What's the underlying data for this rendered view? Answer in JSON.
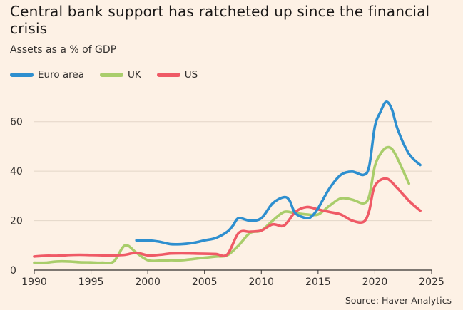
{
  "header": {
    "title": "Central bank support has ratcheted up since the financial crisis",
    "subtitle": "Assets as a % of GDP"
  },
  "footer": {
    "source": "Source: Haver Analytics"
  },
  "chart_data": {
    "type": "line",
    "title": "Central bank support has ratcheted up since the financial crisis",
    "subtitle": "Assets as a % of GDP",
    "xlabel": "",
    "ylabel": "",
    "xlim": [
      1990,
      2025
    ],
    "ylim": [
      0,
      70
    ],
    "x_ticks": [
      1990,
      1995,
      2000,
      2005,
      2010,
      2015,
      2020,
      2025
    ],
    "y_ticks": [
      0,
      20,
      40,
      60
    ],
    "grid": "horizontal",
    "legend_position": "top-left",
    "series": [
      {
        "name": "Euro area",
        "color": "#2e8fcf",
        "points": [
          [
            1999,
            12
          ],
          [
            2000,
            12
          ],
          [
            2001,
            11.5
          ],
          [
            2002,
            10.5
          ],
          [
            2003,
            10.5
          ],
          [
            2004,
            11
          ],
          [
            2005,
            12
          ],
          [
            2006,
            13
          ],
          [
            2007,
            15.5
          ],
          [
            2007.5,
            18
          ],
          [
            2008,
            21
          ],
          [
            2009,
            20
          ],
          [
            2010,
            21
          ],
          [
            2011,
            27
          ],
          [
            2012,
            29.5
          ],
          [
            2012.5,
            28
          ],
          [
            2013,
            23
          ],
          [
            2014,
            21
          ],
          [
            2014.5,
            22
          ],
          [
            2015,
            25
          ],
          [
            2016,
            33
          ],
          [
            2017,
            38.5
          ],
          [
            2018,
            39.8
          ],
          [
            2019,
            38.5
          ],
          [
            2019.5,
            42
          ],
          [
            2020,
            58
          ],
          [
            2020.5,
            64
          ],
          [
            2021,
            68
          ],
          [
            2021.5,
            65
          ],
          [
            2022,
            57
          ],
          [
            2023,
            47
          ],
          [
            2024,
            42.5
          ]
        ]
      },
      {
        "name": "UK",
        "color": "#a9cd6b",
        "points": [
          [
            1990,
            3
          ],
          [
            1991,
            3
          ],
          [
            1992,
            3.5
          ],
          [
            1993,
            3.5
          ],
          [
            1994,
            3.2
          ],
          [
            1995,
            3.1
          ],
          [
            1996,
            3
          ],
          [
            1997,
            3.5
          ],
          [
            1998,
            10
          ],
          [
            1999,
            7
          ],
          [
            2000,
            4
          ],
          [
            2001,
            3.8
          ],
          [
            2002,
            4
          ],
          [
            2003,
            4
          ],
          [
            2004,
            4.5
          ],
          [
            2005,
            5
          ],
          [
            2006,
            5.5
          ],
          [
            2007,
            6
          ],
          [
            2008,
            10
          ],
          [
            2009,
            15
          ],
          [
            2010,
            16
          ],
          [
            2011,
            20
          ],
          [
            2012,
            23.5
          ],
          [
            2013,
            23
          ],
          [
            2014,
            22.5
          ],
          [
            2015,
            22.5
          ],
          [
            2016,
            26
          ],
          [
            2017,
            29
          ],
          [
            2018,
            28.5
          ],
          [
            2019,
            27
          ],
          [
            2019.5,
            30
          ],
          [
            2020,
            42
          ],
          [
            2020.5,
            47
          ],
          [
            2021,
            49.5
          ],
          [
            2021.5,
            49
          ],
          [
            2022,
            45
          ],
          [
            2023,
            35
          ]
        ]
      },
      {
        "name": "US",
        "color": "#ef5a66",
        "points": [
          [
            1990,
            5.5
          ],
          [
            1991,
            5.8
          ],
          [
            1992,
            5.8
          ],
          [
            1993,
            6.1
          ],
          [
            1994,
            6.2
          ],
          [
            1995,
            6.1
          ],
          [
            1996,
            6
          ],
          [
            1997,
            6
          ],
          [
            1998,
            6.2
          ],
          [
            1999,
            7
          ],
          [
            2000,
            6
          ],
          [
            2001,
            6.2
          ],
          [
            2002,
            6.7
          ],
          [
            2003,
            6.8
          ],
          [
            2004,
            6.7
          ],
          [
            2005,
            6.6
          ],
          [
            2006,
            6.5
          ],
          [
            2007,
            6.3
          ],
          [
            2008,
            15
          ],
          [
            2009,
            15.5
          ],
          [
            2010,
            16
          ],
          [
            2011,
            18.5
          ],
          [
            2012,
            18
          ],
          [
            2013,
            23.5
          ],
          [
            2014,
            25.5
          ],
          [
            2015,
            24.5
          ],
          [
            2016,
            23.5
          ],
          [
            2017,
            22.5
          ],
          [
            2018,
            20
          ],
          [
            2019,
            19.5
          ],
          [
            2019.5,
            24
          ],
          [
            2020,
            34
          ],
          [
            2021,
            37
          ],
          [
            2022,
            33
          ],
          [
            2023,
            28
          ],
          [
            2024,
            24
          ]
        ]
      }
    ]
  }
}
